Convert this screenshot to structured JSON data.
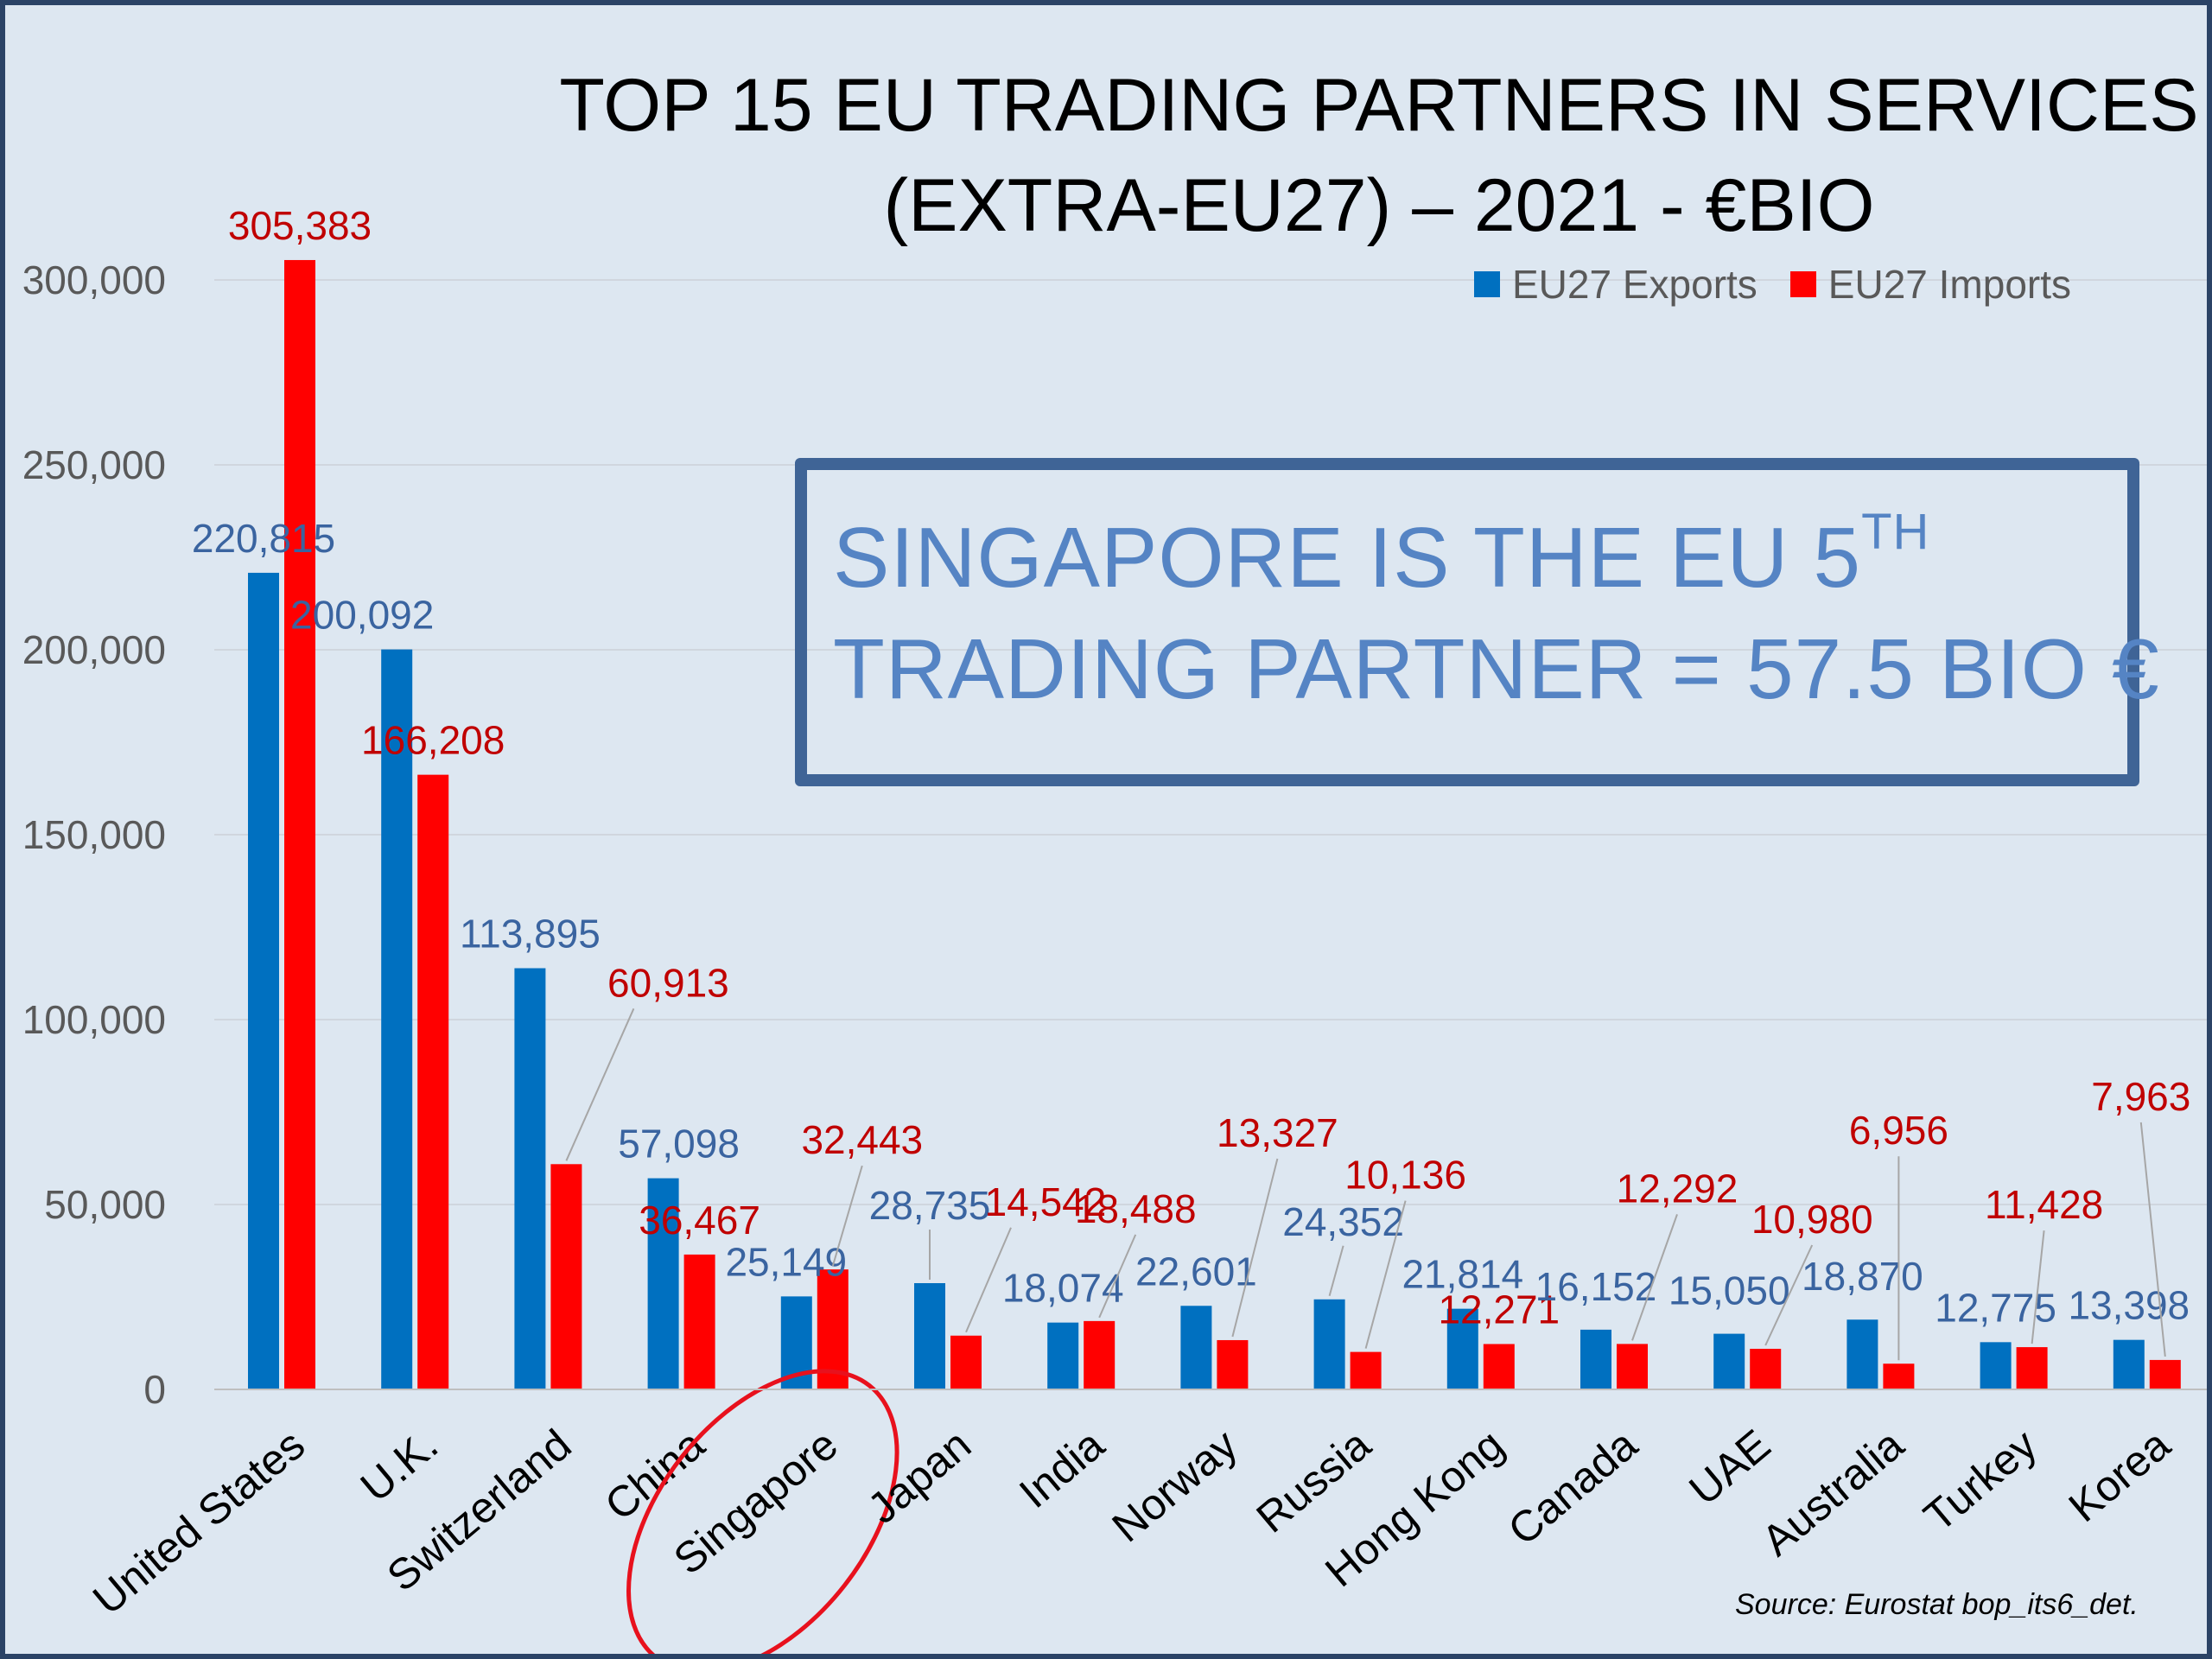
{
  "title_line1": "TOP 15 EU TRADING PARTNERS IN SERVICES",
  "title_line2": "(EXTRA-EU27) – 2021 - €BIO",
  "callout": {
    "line1": "SINGAPORE IS THE EU 5",
    "line1_sup": "TH",
    "line2": "TRADING PARTNER = 57.5 BIO €"
  },
  "source": "Source: Eurostat bop_its6_det.",
  "colors": {
    "exports": "#0070c0",
    "imports": "#ff0000",
    "exports_label": "#3a64a0",
    "imports_label": "#c00000",
    "callout": "#3f6496",
    "highlight_ellipse": "#e8111d"
  },
  "chart_data": {
    "type": "bar",
    "title": "TOP 15 EU TRADING PARTNERS IN SERVICES (EXTRA-EU27) – 2021 - €BIO",
    "categories": [
      "United States",
      "U.K.",
      "Switzerland",
      "China",
      "Singapore",
      "Japan",
      "India",
      "Norway",
      "Russia",
      "Hong Kong",
      "Canada",
      "UAE",
      "Australia",
      "Turkey",
      "Korea"
    ],
    "series": [
      {
        "name": "EU27 Exports",
        "values": [
          220815,
          200092,
          113895,
          57098,
          25149,
          28735,
          18074,
          22601,
          24352,
          21814,
          16152,
          15050,
          18870,
          12775,
          13398
        ],
        "labels": [
          "220,815",
          "200,092",
          "113,895",
          "57,098",
          "25,149",
          "28,735",
          "18,074",
          "22,601",
          "24,352",
          "21,814",
          "16,152",
          "15,050",
          "18,870",
          "12,775",
          "13,398"
        ]
      },
      {
        "name": "EU27 Imports",
        "values": [
          305383,
          166208,
          60913,
          36467,
          32443,
          14542,
          18488,
          13327,
          10136,
          12271,
          12292,
          10980,
          6956,
          11428,
          7963
        ],
        "labels": [
          "305,383",
          "166,208",
          "60,913",
          "36,467",
          "32,443",
          "14,542",
          "18,488",
          "13,327",
          "10,136",
          "12,271",
          "12,292",
          "10,980",
          "6,956",
          "11,428",
          "7,963"
        ]
      }
    ],
    "ylim": [
      0,
      300000
    ],
    "yticks": [
      0,
      50000,
      100000,
      150000,
      200000,
      250000,
      300000
    ],
    "ytick_labels": [
      "0",
      "50,000",
      "100,000",
      "150,000",
      "200,000",
      "250,000",
      "300,000"
    ],
    "grid": true,
    "legend": "top-right",
    "highlighted_category": "Singapore"
  }
}
